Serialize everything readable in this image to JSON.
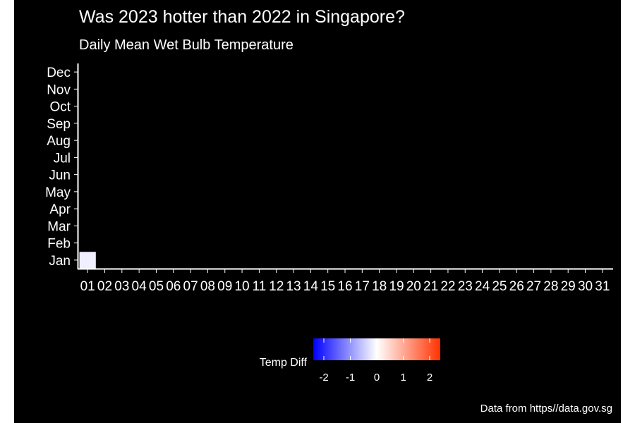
{
  "chart_data": {
    "type": "heatmap",
    "title": "Was 2023 hotter than 2022 in Singapore?",
    "subtitle": "Daily Mean Wet Bulb Temperature",
    "caption": "Data from https//data.gov.sg",
    "x_categories": [
      "01",
      "02",
      "03",
      "04",
      "05",
      "06",
      "07",
      "08",
      "09",
      "10",
      "11",
      "12",
      "13",
      "14",
      "15",
      "16",
      "17",
      "18",
      "19",
      "20",
      "21",
      "22",
      "23",
      "24",
      "25",
      "26",
      "27",
      "28",
      "29",
      "30",
      "31"
    ],
    "y_categories": [
      "Jan",
      "Feb",
      "Mar",
      "Apr",
      "May",
      "Jun",
      "Jul",
      "Aug",
      "Sep",
      "Oct",
      "Nov",
      "Dec"
    ],
    "cells": [
      {
        "x": "01",
        "y": "Jan",
        "value": -0.15
      }
    ],
    "legend": {
      "title": "Temp Diff",
      "placement": "bottom",
      "range": [
        -2.4,
        2.4
      ],
      "ticks": [
        -2,
        -1,
        0,
        1,
        2
      ],
      "tick_labels": [
        "-2",
        "-1",
        "0",
        "1",
        "2"
      ],
      "colors": {
        "low": "#0000ff",
        "mid": "#ffffff",
        "high": "#ff3300"
      }
    },
    "background_color": "#000000",
    "grid": false
  }
}
